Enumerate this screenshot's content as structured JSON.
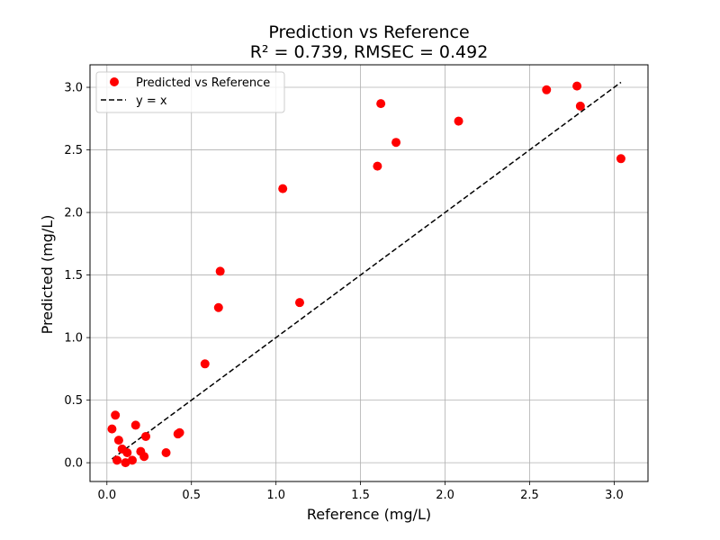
{
  "chart_data": {
    "type": "scatter",
    "title": "Prediction vs Reference",
    "subtitle": "R² = 0.739, RMSEC = 0.492",
    "xlabel": "Reference (mg/L)",
    "ylabel": "Predicted (mg/L)",
    "xlim": [
      -0.1,
      3.2
    ],
    "ylim": [
      -0.15,
      3.18
    ],
    "xticks": [
      0.0,
      0.5,
      1.0,
      1.5,
      2.0,
      2.5,
      3.0
    ],
    "xtick_labels": [
      "0.0",
      "0.5",
      "1.0",
      "1.5",
      "2.0",
      "2.5",
      "3.0"
    ],
    "yticks": [
      0.0,
      0.5,
      1.0,
      1.5,
      2.0,
      2.5,
      3.0
    ],
    "ytick_labels": [
      "0.0",
      "0.5",
      "1.0",
      "1.5",
      "2.0",
      "2.5",
      "3.0"
    ],
    "grid": true,
    "legend_position": "top-left",
    "series": [
      {
        "name": "Predicted vs Reference",
        "kind": "scatter",
        "color": "#ff0000",
        "points": [
          [
            0.03,
            0.27
          ],
          [
            0.05,
            0.38
          ],
          [
            0.06,
            0.02
          ],
          [
            0.07,
            0.18
          ],
          [
            0.09,
            0.11
          ],
          [
            0.11,
            0.0
          ],
          [
            0.12,
            0.08
          ],
          [
            0.15,
            0.02
          ],
          [
            0.17,
            0.3
          ],
          [
            0.2,
            0.09
          ],
          [
            0.22,
            0.05
          ],
          [
            0.23,
            0.21
          ],
          [
            0.35,
            0.08
          ],
          [
            0.42,
            0.23
          ],
          [
            0.43,
            0.24
          ],
          [
            0.58,
            0.79
          ],
          [
            0.66,
            1.24
          ],
          [
            0.67,
            1.53
          ],
          [
            1.04,
            2.19
          ],
          [
            1.14,
            1.28
          ],
          [
            1.6,
            2.37
          ],
          [
            1.62,
            2.87
          ],
          [
            1.71,
            2.56
          ],
          [
            2.08,
            2.73
          ],
          [
            2.6,
            2.98
          ],
          [
            2.78,
            3.01
          ],
          [
            2.8,
            2.85
          ],
          [
            3.04,
            2.43
          ]
        ]
      },
      {
        "name": "y = x",
        "kind": "line",
        "color": "#000000",
        "dash": "dashed",
        "points": [
          [
            0.03,
            0.03
          ],
          [
            3.04,
            3.04
          ]
        ]
      }
    ]
  }
}
